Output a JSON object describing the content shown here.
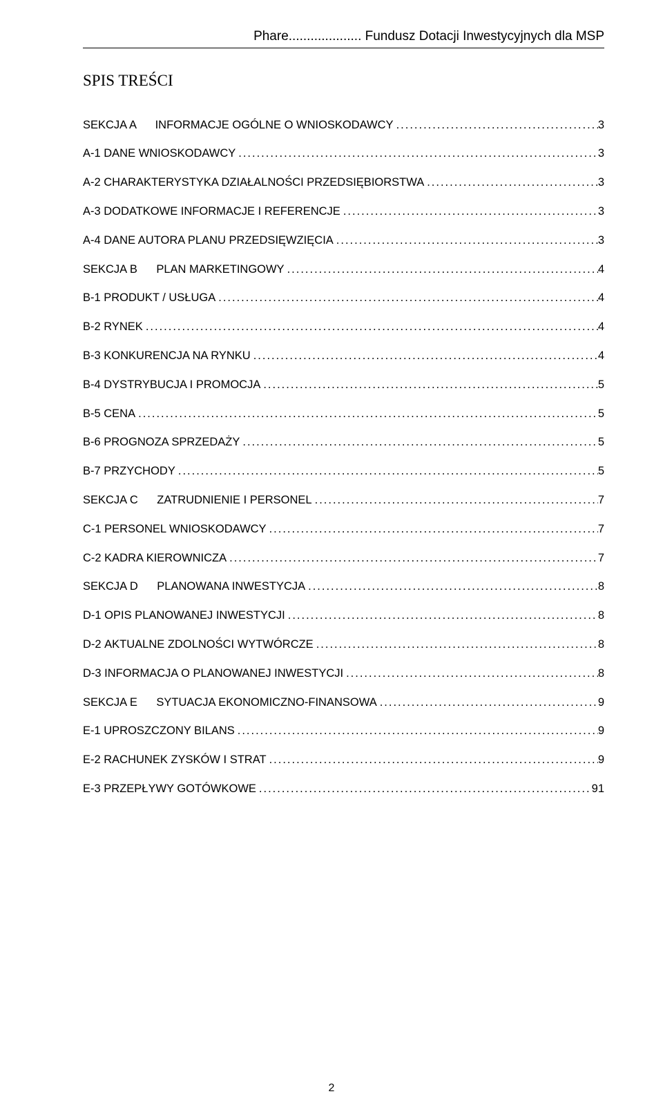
{
  "header": {
    "left": "Phare",
    "right": "Fundusz Dotacji Inwestycyjnych dla MSP"
  },
  "title": "SPIS TREŚCI",
  "toc": [
    {
      "type": "section",
      "prefix": "SEKCJA A",
      "label": "INFORMACJE OGÓLNE O WNIOSKODAWCY",
      "page": "3"
    },
    {
      "type": "item",
      "prefix": "A-1",
      "label": "DANE WNIOSKODAWCY",
      "page": "3"
    },
    {
      "type": "item",
      "prefix": "A-2",
      "label": "CHARAKTERYSTYKA DZIAŁALNOŚCI PRZEDSIĘBIORSTWA",
      "page": "3"
    },
    {
      "type": "item",
      "prefix": "A-3",
      "label": "DODATKOWE INFORMACJE I REFERENCJE",
      "page": "3"
    },
    {
      "type": "item",
      "prefix": "A-4",
      "label": "DANE AUTORA PLANU PRZEDSIĘWZIĘCIA",
      "page": "3"
    },
    {
      "type": "section",
      "prefix": "SEKCJA B",
      "label": "PLAN MARKETINGOWY",
      "page": "4"
    },
    {
      "type": "item",
      "prefix": "B-1",
      "label": "PRODUKT / USŁUGA",
      "page": "4"
    },
    {
      "type": "item",
      "prefix": "B-2",
      "label": "RYNEK",
      "page": "4"
    },
    {
      "type": "item",
      "prefix": "B-3",
      "label": "KONKURENCJA NA RYNKU",
      "page": "4"
    },
    {
      "type": "item",
      "prefix": "B-4",
      "label": "DYSTRYBUCJA I PROMOCJA",
      "page": "5"
    },
    {
      "type": "item",
      "prefix": "B-5",
      "label": "CENA",
      "page": "5"
    },
    {
      "type": "item",
      "prefix": "B-6",
      "label": "PROGNOZA SPRZEDAŻY",
      "page": "5"
    },
    {
      "type": "item",
      "prefix": "B-7",
      "label": "PRZYCHODY",
      "page": "5"
    },
    {
      "type": "section",
      "prefix": "SEKCJA C",
      "label": "ZATRUDNIENIE I PERSONEL",
      "page": "7"
    },
    {
      "type": "item",
      "prefix": "C-1",
      "label": "PERSONEL WNIOSKODAWCY",
      "page": "7"
    },
    {
      "type": "item",
      "prefix": "C-2",
      "label": "KADRA KIEROWNICZA",
      "page": "7"
    },
    {
      "type": "section",
      "prefix": "SEKCJA D",
      "label": "PLANOWANA INWESTYCJA",
      "page": "8"
    },
    {
      "type": "item",
      "prefix": "D-1",
      "label": "OPIS PLANOWANEJ INWESTYCJI",
      "page": "8"
    },
    {
      "type": "item",
      "prefix": "D-2",
      "label": "AKTUALNE ZDOLNOŚCI WYTWÓRCZE",
      "page": "8"
    },
    {
      "type": "item",
      "prefix": "D-3",
      "label": "INFORMACJA O PLANOWANEJ INWESTYCJI",
      "page": "8"
    },
    {
      "type": "section",
      "prefix": "SEKCJA E",
      "label": "SYTUACJA EKONOMICZNO-FINANSOWA",
      "page": "9"
    },
    {
      "type": "item",
      "prefix": "E-1",
      "label": "UPROSZCZONY BILANS",
      "page": "9"
    },
    {
      "type": "item",
      "prefix": "E-2",
      "label": "RACHUNEK ZYSKÓW I STRAT",
      "page": "9"
    },
    {
      "type": "item",
      "prefix": "E-3",
      "label": "PRZEPŁYWY GOTÓWKOWE",
      "page": "91"
    }
  ],
  "footer": {
    "pageNumber": "2"
  },
  "style": {
    "header_dots": "....................",
    "leader_char": "."
  }
}
